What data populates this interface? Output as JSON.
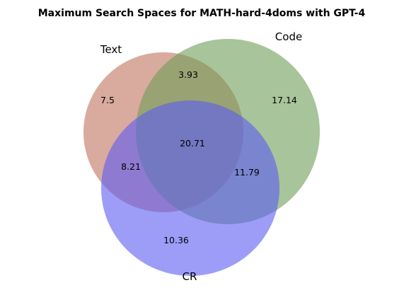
{
  "title": "Maximum Search Spaces for MATH-hard-4doms with GPT-4",
  "sets": [
    {
      "key": "text",
      "label": "Text",
      "color": "#c0725d"
    },
    {
      "key": "code",
      "label": "Code",
      "color": "#6e9d56"
    },
    {
      "key": "cr",
      "label": "CR",
      "color": "#5b5cf4"
    }
  ],
  "regions": {
    "text_only": "7.5",
    "code_only": "17.14",
    "cr_only": "10.36",
    "text_code": "3.93",
    "text_cr": "8.21",
    "code_cr": "11.79",
    "all": "20.71"
  }
}
